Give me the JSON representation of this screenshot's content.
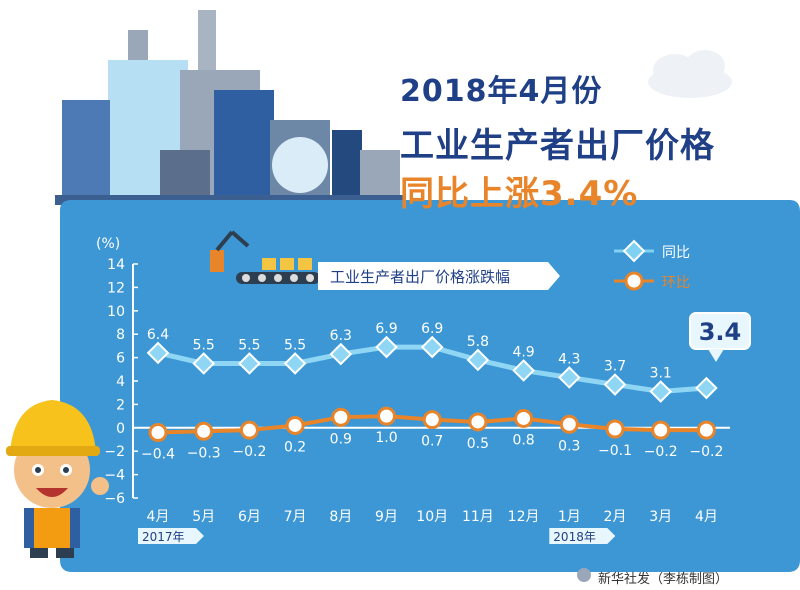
{
  "header": {
    "title_line1": "2018年4月份",
    "title_line2": "工业生产者出厂价格",
    "title_line3": "同比上涨3.4%"
  },
  "source": "新华社发（李栋制图）",
  "colors": {
    "panel": "#3c97d4",
    "yoy_series": "#7fd1f4",
    "mom_series": "#e8842a",
    "title_blue": "#1f3f87",
    "title_orange": "#e8842a"
  },
  "chart_data": {
    "type": "line",
    "title": "工业生产者出厂价格涨跌幅",
    "ylabel": "(%)",
    "xlabel": "",
    "ylim": [
      -6,
      14
    ],
    "yticks": [
      14,
      12,
      10,
      8,
      6,
      4,
      2,
      0,
      -2,
      -4,
      -6
    ],
    "categories": [
      "4月",
      "5月",
      "6月",
      "7月",
      "8月",
      "9月",
      "10月",
      "11月",
      "12月",
      "1月",
      "2月",
      "3月",
      "4月"
    ],
    "year_labels": [
      {
        "text": "2017年",
        "category_index": 0
      },
      {
        "text": "2018年",
        "category_index": 9
      }
    ],
    "series": [
      {
        "name": "同比",
        "values": [
          6.4,
          5.5,
          5.5,
          5.5,
          6.3,
          6.9,
          6.9,
          5.8,
          4.9,
          4.3,
          3.7,
          3.1,
          3.4
        ],
        "labels": [
          "6.4",
          "5.5",
          "5.5",
          "5.5",
          "6.3",
          "6.9",
          "6.9",
          "5.8",
          "4.9",
          "4.3",
          "3.7",
          "3.1",
          "3.4"
        ]
      },
      {
        "name": "环比",
        "values": [
          -0.4,
          -0.3,
          -0.2,
          0.2,
          0.9,
          1.0,
          0.7,
          0.5,
          0.8,
          0.3,
          -0.1,
          -0.2,
          -0.2
        ],
        "labels": [
          "−0.4",
          "−0.3",
          "−0.2",
          "0.2",
          "0.9",
          "1.0",
          "0.7",
          "0.5",
          "0.8",
          "0.3",
          "−0.1",
          "−0.2",
          "−0.2"
        ]
      }
    ],
    "callout": "3.4",
    "legend_position": "top-right",
    "grid": false
  }
}
